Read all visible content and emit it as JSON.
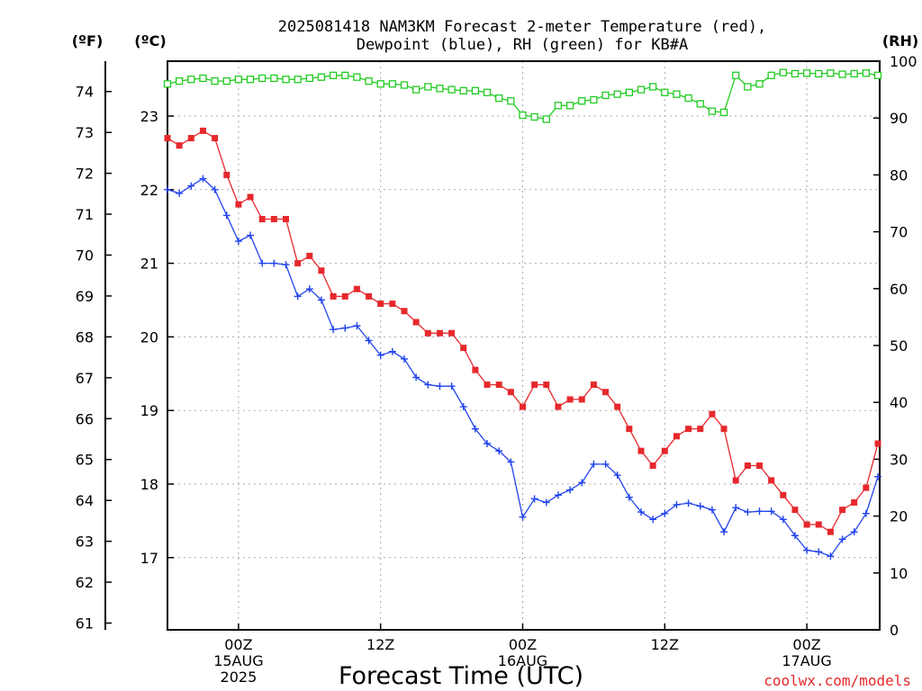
{
  "title_line1": "2025081418 NAM3KM Forecast 2-meter Temperature (red),",
  "title_line2": "Dewpoint (blue), RH (green) for KB#A",
  "unit_left_f": "(ºF)",
  "unit_left_c": "(ºC)",
  "unit_right_rh": "(RH)",
  "x_title": "Forecast Time (UTC)",
  "credit": "coolwx.com/models",
  "colors": {
    "temperature": "#e6282c",
    "dewpoint": "#2244ee",
    "rh": "#22cc22",
    "grid": "#aaaaaa"
  },
  "chart_data": {
    "type": "line",
    "title": "2025081418 NAM3KM Forecast 2-meter Temperature (red), Dewpoint (blue), RH (green) for KB#A",
    "xlabel": "Forecast Time (UTC)",
    "x_start": "2025-08-14 18Z",
    "x_step_hours": 1,
    "x_ticks": [
      {
        "hour_index": 6,
        "lines": [
          "00Z",
          "15AUG",
          "2025"
        ]
      },
      {
        "hour_index": 18,
        "lines": [
          "12Z"
        ]
      },
      {
        "hour_index": 30,
        "lines": [
          "00Z",
          "16AUG"
        ]
      },
      {
        "hour_index": 42,
        "lines": [
          "12Z"
        ]
      },
      {
        "hour_index": 54,
        "lines": [
          "00Z",
          "17AUG"
        ]
      }
    ],
    "y_left_c": {
      "label": "(ºC)",
      "ticks": [
        17,
        18,
        19,
        20,
        21,
        22,
        23
      ]
    },
    "y_left_f": {
      "label": "(ºF)",
      "ticks": [
        61,
        62,
        63,
        64,
        65,
        66,
        67,
        68,
        69,
        70,
        71,
        72,
        73,
        74
      ]
    },
    "y_right_rh": {
      "label": "(RH)",
      "range": [
        0,
        100
      ],
      "ticks": [
        0,
        10,
        20,
        30,
        40,
        50,
        60,
        70,
        80,
        90,
        100
      ]
    },
    "grid": true,
    "series": [
      {
        "name": "Temperature",
        "axis": "C",
        "values": [
          22.7,
          22.6,
          22.7,
          22.8,
          22.7,
          22.2,
          21.8,
          21.9,
          21.6,
          21.6,
          21.6,
          21.0,
          21.1,
          20.9,
          20.55,
          20.55,
          20.65,
          20.55,
          20.45,
          20.45,
          20.35,
          20.2,
          20.05,
          20.05,
          20.05,
          19.85,
          19.55,
          19.35,
          19.35,
          19.25,
          19.05,
          19.35,
          19.35,
          19.05,
          19.15,
          19.15,
          19.35,
          19.25,
          19.05,
          18.75,
          18.45,
          18.25,
          18.45,
          18.65,
          18.75,
          18.75,
          18.95,
          18.75,
          18.05,
          18.25,
          18.25,
          18.05,
          17.85,
          17.65,
          17.45,
          17.45,
          17.35,
          17.65,
          17.75,
          17.95,
          18.55
        ]
      },
      {
        "name": "Dewpoint",
        "axis": "C",
        "values": [
          22.0,
          21.95,
          22.05,
          22.15,
          22.0,
          21.65,
          21.3,
          21.38,
          21.0,
          21.0,
          20.98,
          20.55,
          20.65,
          20.5,
          20.1,
          20.12,
          20.15,
          19.95,
          19.75,
          19.8,
          19.7,
          19.45,
          19.35,
          19.33,
          19.33,
          19.05,
          18.75,
          18.55,
          18.45,
          18.3,
          17.55,
          17.8,
          17.75,
          17.85,
          17.92,
          18.02,
          18.27,
          18.27,
          18.12,
          17.82,
          17.62,
          17.52,
          17.6,
          17.72,
          17.74,
          17.7,
          17.65,
          17.35,
          17.68,
          17.62,
          17.63,
          17.63,
          17.52,
          17.3,
          17.1,
          17.08,
          17.02,
          17.25,
          17.35,
          17.6,
          18.1
        ]
      },
      {
        "name": "RH",
        "axis": "RH",
        "values": [
          96,
          96.5,
          96.8,
          97,
          96.5,
          96.5,
          96.8,
          96.8,
          97,
          97,
          96.8,
          96.8,
          97,
          97.2,
          97.5,
          97.5,
          97.2,
          96.5,
          96,
          96,
          95.8,
          95,
          95.5,
          95.2,
          95,
          94.8,
          94.8,
          94.5,
          93.5,
          93,
          90.5,
          90.2,
          89.8,
          92.2,
          92.2,
          93,
          93.2,
          94,
          94.2,
          94.5,
          95,
          95.5,
          94.5,
          94.2,
          93.5,
          92.5,
          91.2,
          91,
          97.5,
          95.5,
          96,
          97.5,
          98,
          97.8,
          97.9,
          97.8,
          97.9,
          97.7,
          97.8,
          97.9,
          97.5
        ]
      }
    ]
  }
}
